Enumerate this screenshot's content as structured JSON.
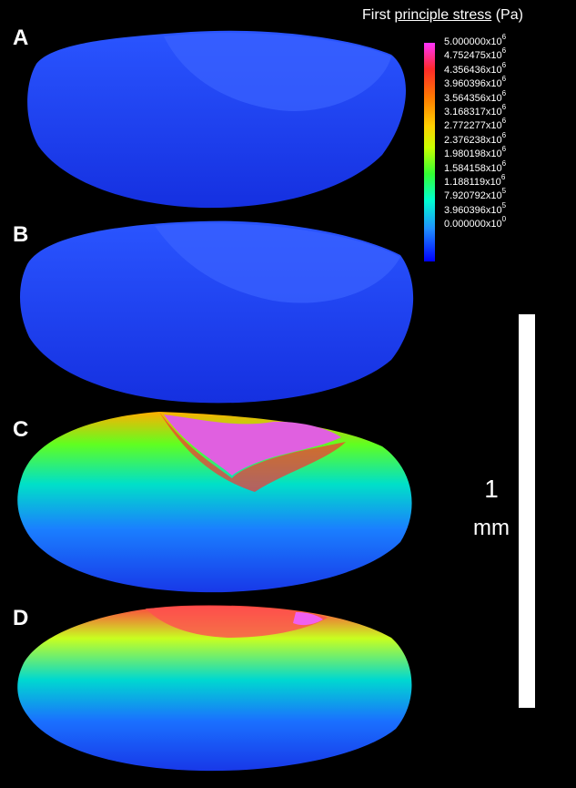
{
  "panels": [
    {
      "label": "A"
    },
    {
      "label": "B"
    },
    {
      "label": "C"
    },
    {
      "label": "D"
    }
  ],
  "legend": {
    "title_prefix": "First ",
    "title_underlined": "principle stress",
    "title_suffix": " (Pa)",
    "ticks": [
      {
        "mant": "5.000000x10",
        "exp": "6"
      },
      {
        "mant": "4.752475x10",
        "exp": "6"
      },
      {
        "mant": "4.356436x10",
        "exp": "6"
      },
      {
        "mant": "3.960396x10",
        "exp": "6"
      },
      {
        "mant": "3.564356x10",
        "exp": "6"
      },
      {
        "mant": "3.168317x10",
        "exp": "6"
      },
      {
        "mant": "2.772277x10",
        "exp": "6"
      },
      {
        "mant": "2.376238x10",
        "exp": "6"
      },
      {
        "mant": "1.980198x10",
        "exp": "6"
      },
      {
        "mant": "1.584158x10",
        "exp": "6"
      },
      {
        "mant": "1.188119x10",
        "exp": "6"
      },
      {
        "mant": "7.920792x10",
        "exp": "5"
      },
      {
        "mant": "3.960396x10",
        "exp": "5"
      },
      {
        "mant": "0.000000x10",
        "exp": "0"
      }
    ],
    "colors": [
      "#ff33ff",
      "#ff2a2a",
      "#ff7a00",
      "#ffd000",
      "#33ff33",
      "#00ffd0",
      "#0000ff"
    ]
  },
  "scale_bar": {
    "value": "1",
    "unit": "mm"
  }
}
